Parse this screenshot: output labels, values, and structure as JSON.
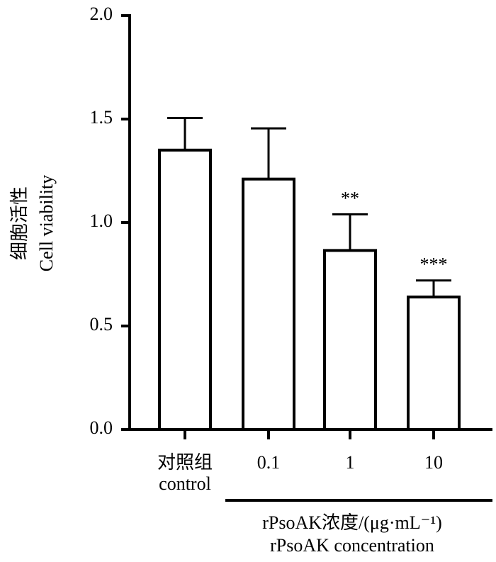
{
  "chart_data": {
    "type": "bar",
    "categories": [
      [
        "对照组",
        "control"
      ],
      [
        "0.1"
      ],
      [
        "1"
      ],
      [
        "10"
      ]
    ],
    "values": [
      1.35,
      1.21,
      0.865,
      0.64
    ],
    "errors": [
      0.155,
      0.245,
      0.175,
      0.08
    ],
    "significance": [
      null,
      null,
      "**",
      "***"
    ],
    "ylabel": [
      "细胞活性",
      "Cell viability"
    ],
    "xlabel": [
      "rPsoAK浓度/(μg·mL⁻¹)",
      "rPsoAK concentration"
    ],
    "ylim": [
      0,
      2.0
    ],
    "yticks": [
      {
        "value": 0,
        "label": "0.0"
      },
      {
        "value": 0.5,
        "label": "0.5"
      },
      {
        "value": 1,
        "label": "1.0"
      },
      {
        "value": 1.5,
        "label": "1.5"
      },
      {
        "value": 2,
        "label": "2.0"
      }
    ],
    "color": "#ffffff"
  }
}
